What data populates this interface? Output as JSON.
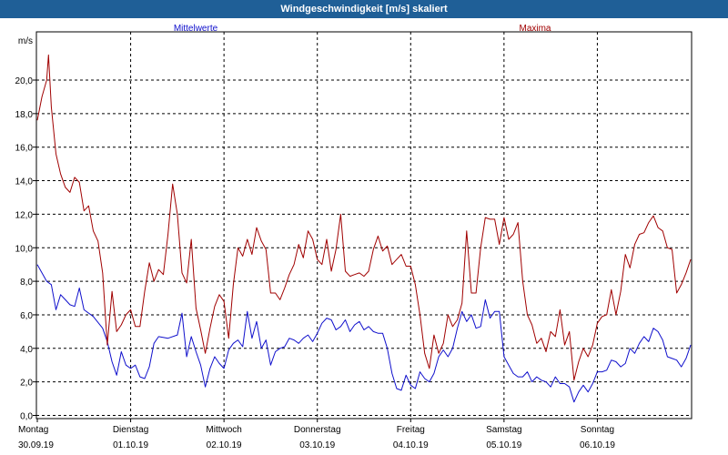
{
  "window": {
    "title": "Windgeschwindigkeit [m/s] skaliert"
  },
  "colors": {
    "titlebar": "#1f5f97",
    "mean": "#1010cc",
    "max": "#a00000",
    "grid": "#000000"
  },
  "chart_data": {
    "type": "line",
    "title": "Windgeschwindigkeit [m/s] skaliert",
    "ylabel": "m/s",
    "xlabel": "",
    "ylim": [
      0,
      22
    ],
    "xlim": [
      0,
      7
    ],
    "grid": true,
    "yticks": [
      "0,0",
      "2,0",
      "4,0",
      "6,0",
      "8,0",
      "10,0",
      "12,0",
      "14,0",
      "16,0",
      "18,0",
      "20,0"
    ],
    "ytick_values": [
      0,
      2,
      4,
      6,
      8,
      10,
      12,
      14,
      16,
      18,
      20
    ],
    "xticks": [
      {
        "day": "Montag",
        "date": "30.09.19",
        "x": 0
      },
      {
        "day": "Dienstag",
        "date": "01.10.19",
        "x": 1
      },
      {
        "day": "Mittwoch",
        "date": "02.10.19",
        "x": 2
      },
      {
        "day": "Donnerstag",
        "date": "03.10.19",
        "x": 3
      },
      {
        "day": "Freitag",
        "date": "04.10.19",
        "x": 4
      },
      {
        "day": "Samstag",
        "date": "05.10.19",
        "x": 5
      },
      {
        "day": "Sonntag",
        "date": "06.10.19",
        "x": 6
      }
    ],
    "legend": "top",
    "series": [
      {
        "name": "Mittelwerte",
        "color": "#1010cc",
        "points": [
          [
            0,
            9.0
          ],
          [
            0.1,
            8.0
          ],
          [
            0.15,
            7.8
          ],
          [
            0.2,
            6.3
          ],
          [
            0.25,
            7.2
          ],
          [
            0.3,
            6.9
          ],
          [
            0.35,
            6.6
          ],
          [
            0.4,
            6.5
          ],
          [
            0.45,
            7.6
          ],
          [
            0.5,
            6.3
          ],
          [
            0.6,
            5.9
          ],
          [
            0.7,
            5.2
          ],
          [
            0.75,
            4.4
          ],
          [
            0.8,
            3.2
          ],
          [
            0.85,
            2.4
          ],
          [
            0.9,
            3.8
          ],
          [
            0.95,
            3.0
          ],
          [
            1.0,
            2.8
          ],
          [
            1.05,
            3.0
          ],
          [
            1.1,
            2.3
          ],
          [
            1.15,
            2.2
          ],
          [
            1.2,
            2.9
          ],
          [
            1.25,
            4.3
          ],
          [
            1.3,
            4.7
          ],
          [
            1.4,
            4.6
          ],
          [
            1.5,
            4.8
          ],
          [
            1.55,
            6.1
          ],
          [
            1.6,
            3.5
          ],
          [
            1.65,
            4.7
          ],
          [
            1.7,
            3.8
          ],
          [
            1.75,
            3.0
          ],
          [
            1.8,
            1.7
          ],
          [
            1.85,
            2.8
          ],
          [
            1.9,
            3.5
          ],
          [
            1.95,
            3.1
          ],
          [
            2.0,
            2.8
          ],
          [
            2.05,
            3.9
          ],
          [
            2.1,
            4.3
          ],
          [
            2.15,
            4.5
          ],
          [
            2.2,
            4.1
          ],
          [
            2.25,
            6.2
          ],
          [
            2.3,
            4.6
          ],
          [
            2.35,
            5.6
          ],
          [
            2.4,
            4.0
          ],
          [
            2.45,
            4.5
          ],
          [
            2.5,
            3.0
          ],
          [
            2.55,
            3.8
          ],
          [
            2.6,
            4.0
          ],
          [
            2.65,
            4.1
          ],
          [
            2.7,
            4.6
          ],
          [
            2.75,
            4.5
          ],
          [
            2.8,
            4.3
          ],
          [
            2.85,
            4.6
          ],
          [
            2.9,
            4.8
          ],
          [
            2.95,
            4.4
          ],
          [
            3.0,
            4.9
          ],
          [
            3.05,
            5.5
          ],
          [
            3.1,
            5.8
          ],
          [
            3.15,
            5.7
          ],
          [
            3.2,
            5.1
          ],
          [
            3.25,
            5.3
          ],
          [
            3.3,
            5.7
          ],
          [
            3.35,
            5.0
          ],
          [
            3.4,
            5.4
          ],
          [
            3.45,
            5.6
          ],
          [
            3.5,
            5.1
          ],
          [
            3.55,
            5.3
          ],
          [
            3.6,
            5.0
          ],
          [
            3.65,
            4.9
          ],
          [
            3.7,
            4.9
          ],
          [
            3.75,
            4.0
          ],
          [
            3.8,
            2.5
          ],
          [
            3.85,
            1.6
          ],
          [
            3.9,
            1.5
          ],
          [
            3.95,
            2.4
          ],
          [
            4.0,
            1.8
          ],
          [
            4.05,
            1.6
          ],
          [
            4.1,
            2.6
          ],
          [
            4.15,
            2.2
          ],
          [
            4.2,
            2.0
          ],
          [
            4.25,
            2.5
          ],
          [
            4.3,
            3.5
          ],
          [
            4.35,
            3.9
          ],
          [
            4.4,
            3.5
          ],
          [
            4.45,
            4.0
          ],
          [
            4.5,
            5.2
          ],
          [
            4.55,
            6.2
          ],
          [
            4.6,
            5.6
          ],
          [
            4.65,
            6.0
          ],
          [
            4.7,
            5.2
          ],
          [
            4.75,
            5.3
          ],
          [
            4.8,
            6.9
          ],
          [
            4.85,
            5.8
          ],
          [
            4.9,
            6.2
          ],
          [
            4.95,
            6.2
          ],
          [
            5.0,
            3.5
          ],
          [
            5.05,
            3.0
          ],
          [
            5.1,
            2.5
          ],
          [
            5.15,
            2.3
          ],
          [
            5.2,
            2.3
          ],
          [
            5.25,
            2.6
          ],
          [
            5.3,
            2.0
          ],
          [
            5.35,
            2.3
          ],
          [
            5.4,
            2.1
          ],
          [
            5.45,
            2.0
          ],
          [
            5.5,
            1.7
          ],
          [
            5.55,
            2.3
          ],
          [
            5.6,
            1.9
          ],
          [
            5.65,
            1.9
          ],
          [
            5.7,
            1.7
          ],
          [
            5.75,
            0.8
          ],
          [
            5.8,
            1.4
          ],
          [
            5.85,
            1.8
          ],
          [
            5.9,
            1.4
          ],
          [
            5.95,
            1.9
          ],
          [
            6.0,
            2.6
          ],
          [
            6.05,
            2.6
          ],
          [
            6.1,
            2.7
          ],
          [
            6.15,
            3.3
          ],
          [
            6.2,
            3.2
          ],
          [
            6.25,
            2.9
          ],
          [
            6.3,
            3.1
          ],
          [
            6.35,
            4.0
          ],
          [
            6.4,
            3.7
          ],
          [
            6.45,
            4.3
          ],
          [
            6.5,
            4.7
          ],
          [
            6.55,
            4.4
          ],
          [
            6.6,
            5.2
          ],
          [
            6.65,
            5.0
          ],
          [
            6.7,
            4.5
          ],
          [
            6.75,
            3.5
          ],
          [
            6.8,
            3.4
          ],
          [
            6.85,
            3.3
          ],
          [
            6.9,
            2.9
          ],
          [
            6.95,
            3.4
          ],
          [
            7.0,
            4.2
          ]
        ]
      },
      {
        "name": "Maxima",
        "color": "#a00000",
        "points": [
          [
            0,
            17.6
          ],
          [
            0.05,
            19.0
          ],
          [
            0.1,
            20.0
          ],
          [
            0.12,
            21.5
          ],
          [
            0.15,
            18.4
          ],
          [
            0.2,
            15.6
          ],
          [
            0.25,
            14.4
          ],
          [
            0.3,
            13.6
          ],
          [
            0.35,
            13.3
          ],
          [
            0.4,
            14.2
          ],
          [
            0.45,
            13.9
          ],
          [
            0.5,
            12.2
          ],
          [
            0.55,
            12.5
          ],
          [
            0.6,
            11.0
          ],
          [
            0.65,
            10.4
          ],
          [
            0.7,
            8.5
          ],
          [
            0.75,
            4.2
          ],
          [
            0.8,
            7.4
          ],
          [
            0.85,
            5.0
          ],
          [
            0.9,
            5.4
          ],
          [
            0.95,
            6.0
          ],
          [
            1.0,
            6.3
          ],
          [
            1.05,
            5.3
          ],
          [
            1.1,
            5.3
          ],
          [
            1.15,
            7.4
          ],
          [
            1.2,
            9.1
          ],
          [
            1.25,
            8.0
          ],
          [
            1.3,
            8.7
          ],
          [
            1.35,
            8.4
          ],
          [
            1.4,
            10.8
          ],
          [
            1.45,
            13.8
          ],
          [
            1.5,
            12.0
          ],
          [
            1.55,
            8.5
          ],
          [
            1.6,
            7.9
          ],
          [
            1.65,
            10.5
          ],
          [
            1.7,
            6.4
          ],
          [
            1.75,
            5.1
          ],
          [
            1.8,
            3.7
          ],
          [
            1.85,
            5.2
          ],
          [
            1.9,
            6.5
          ],
          [
            1.95,
            7.2
          ],
          [
            2.0,
            6.8
          ],
          [
            2.05,
            4.6
          ],
          [
            2.1,
            7.8
          ],
          [
            2.15,
            10.0
          ],
          [
            2.2,
            9.5
          ],
          [
            2.25,
            10.5
          ],
          [
            2.3,
            9.6
          ],
          [
            2.35,
            11.2
          ],
          [
            2.4,
            10.4
          ],
          [
            2.45,
            9.9
          ],
          [
            2.5,
            7.3
          ],
          [
            2.55,
            7.3
          ],
          [
            2.6,
            6.9
          ],
          [
            2.65,
            7.6
          ],
          [
            2.7,
            8.4
          ],
          [
            2.75,
            9.0
          ],
          [
            2.8,
            10.2
          ],
          [
            2.85,
            9.4
          ],
          [
            2.9,
            11.0
          ],
          [
            2.95,
            10.5
          ],
          [
            3.0,
            9.3
          ],
          [
            3.05,
            9.0
          ],
          [
            3.1,
            10.5
          ],
          [
            3.15,
            8.6
          ],
          [
            3.2,
            9.9
          ],
          [
            3.25,
            12.0
          ],
          [
            3.3,
            8.6
          ],
          [
            3.35,
            8.3
          ],
          [
            3.4,
            8.4
          ],
          [
            3.45,
            8.5
          ],
          [
            3.5,
            8.3
          ],
          [
            3.55,
            8.6
          ],
          [
            3.6,
            9.9
          ],
          [
            3.65,
            10.7
          ],
          [
            3.7,
            9.8
          ],
          [
            3.75,
            10.1
          ],
          [
            3.8,
            9.0
          ],
          [
            3.85,
            9.3
          ],
          [
            3.9,
            9.6
          ],
          [
            3.95,
            8.9
          ],
          [
            4.0,
            8.9
          ],
          [
            4.05,
            7.8
          ],
          [
            4.1,
            6.0
          ],
          [
            4.15,
            3.7
          ],
          [
            4.2,
            2.8
          ],
          [
            4.25,
            4.8
          ],
          [
            4.3,
            3.7
          ],
          [
            4.35,
            4.3
          ],
          [
            4.4,
            6.0
          ],
          [
            4.45,
            5.3
          ],
          [
            4.5,
            5.7
          ],
          [
            4.55,
            6.7
          ],
          [
            4.6,
            11.0
          ],
          [
            4.65,
            7.3
          ],
          [
            4.7,
            7.3
          ],
          [
            4.75,
            10.0
          ],
          [
            4.8,
            11.8
          ],
          [
            4.85,
            11.7
          ],
          [
            4.9,
            11.7
          ],
          [
            4.95,
            10.2
          ],
          [
            5.0,
            11.8
          ],
          [
            5.05,
            10.5
          ],
          [
            5.1,
            10.8
          ],
          [
            5.15,
            11.5
          ],
          [
            5.2,
            8.0
          ],
          [
            5.25,
            6.0
          ],
          [
            5.3,
            5.4
          ],
          [
            5.35,
            4.3
          ],
          [
            5.4,
            4.6
          ],
          [
            5.45,
            3.8
          ],
          [
            5.5,
            5.0
          ],
          [
            5.55,
            4.7
          ],
          [
            5.6,
            6.3
          ],
          [
            5.65,
            4.2
          ],
          [
            5.7,
            5.0
          ],
          [
            5.75,
            2.1
          ],
          [
            5.8,
            3.2
          ],
          [
            5.85,
            4.0
          ],
          [
            5.9,
            3.5
          ],
          [
            5.95,
            4.2
          ],
          [
            6.0,
            5.5
          ],
          [
            6.05,
            5.9
          ],
          [
            6.1,
            6.0
          ],
          [
            6.15,
            7.5
          ],
          [
            6.2,
            6.0
          ],
          [
            6.25,
            7.4
          ],
          [
            6.3,
            9.6
          ],
          [
            6.35,
            8.8
          ],
          [
            6.4,
            10.2
          ],
          [
            6.45,
            10.8
          ],
          [
            6.5,
            10.9
          ],
          [
            6.55,
            11.5
          ],
          [
            6.6,
            11.9
          ],
          [
            6.65,
            11.2
          ],
          [
            6.7,
            11.0
          ],
          [
            6.75,
            10.0
          ],
          [
            6.8,
            9.9
          ],
          [
            6.85,
            7.3
          ],
          [
            6.9,
            7.8
          ],
          [
            6.95,
            8.5
          ],
          [
            7.0,
            9.3
          ]
        ]
      }
    ]
  }
}
